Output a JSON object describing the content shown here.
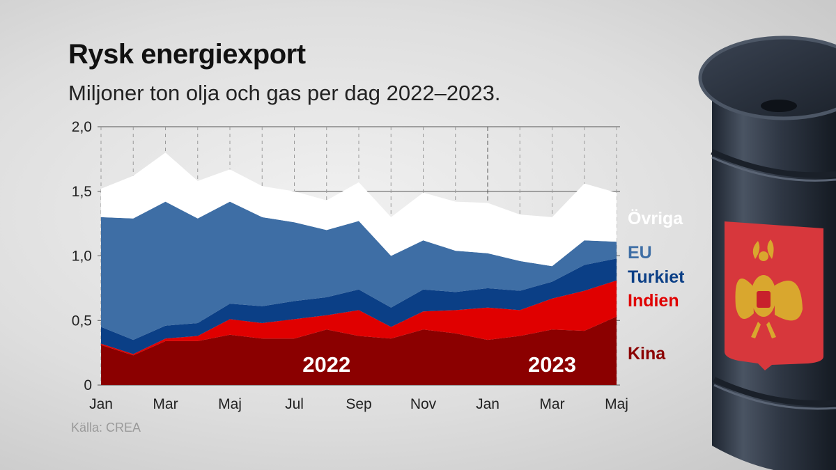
{
  "title": "Rysk energiexport",
  "subtitle": "Miljoner ton olja och gas per dag 2022–2023.",
  "source": "Källa: CREA",
  "chart_data": {
    "type": "area",
    "stacked": true,
    "title": "Rysk energiexport",
    "subtitle": "Miljoner ton olja och gas per dag 2022–2023.",
    "xlabel": "",
    "ylabel": "",
    "ylim": [
      0,
      2.0
    ],
    "yticks": [
      0,
      0.5,
      1.0,
      1.5,
      2.0
    ],
    "ytick_labels": [
      "0",
      "0,5",
      "1,0",
      "1,5",
      "2,0"
    ],
    "x": [
      "2022-01",
      "2022-02",
      "2022-03",
      "2022-04",
      "2022-05",
      "2022-06",
      "2022-07",
      "2022-08",
      "2022-09",
      "2022-10",
      "2022-11",
      "2022-12",
      "2023-01",
      "2023-02",
      "2023-03",
      "2023-04",
      "2023-05"
    ],
    "xtick_labels": [
      "Jan",
      "",
      "Mar",
      "",
      "Maj",
      "",
      "Jul",
      "",
      "Sep",
      "",
      "Nov",
      "",
      "Jan",
      "",
      "Mar",
      "",
      "Maj"
    ],
    "year_labels": [
      {
        "text": "2022",
        "x": "2022-08"
      },
      {
        "text": "2023",
        "x": "2023-03"
      }
    ],
    "year_divider": "2023-01",
    "grid": true,
    "series": [
      {
        "name": "Kina",
        "color": "#8b0000",
        "values": [
          0.31,
          0.23,
          0.34,
          0.34,
          0.39,
          0.36,
          0.36,
          0.43,
          0.38,
          0.36,
          0.43,
          0.4,
          0.35,
          0.38,
          0.43,
          0.42,
          0.53
        ]
      },
      {
        "name": "Indien",
        "color": "#e00000",
        "values": [
          0.01,
          0.01,
          0.02,
          0.04,
          0.12,
          0.12,
          0.15,
          0.11,
          0.2,
          0.09,
          0.14,
          0.18,
          0.25,
          0.2,
          0.24,
          0.31,
          0.28
        ]
      },
      {
        "name": "Turkiet",
        "color": "#0b3f86",
        "values": [
          0.13,
          0.11,
          0.1,
          0.1,
          0.12,
          0.13,
          0.14,
          0.14,
          0.16,
          0.15,
          0.17,
          0.14,
          0.15,
          0.15,
          0.13,
          0.2,
          0.17
        ]
      },
      {
        "name": "EU",
        "color": "#3e6ea5",
        "values": [
          0.85,
          0.94,
          0.96,
          0.81,
          0.79,
          0.69,
          0.61,
          0.52,
          0.53,
          0.4,
          0.38,
          0.32,
          0.27,
          0.23,
          0.12,
          0.19,
          0.13
        ]
      },
      {
        "name": "Övriga",
        "color": "#ffffff",
        "values": [
          0.22,
          0.33,
          0.38,
          0.29,
          0.25,
          0.24,
          0.24,
          0.23,
          0.3,
          0.3,
          0.37,
          0.38,
          0.39,
          0.36,
          0.38,
          0.44,
          0.38
        ]
      }
    ],
    "legend": "right",
    "legend_colors": {
      "Övriga": "#ffffff",
      "EU": "#3e6ea5",
      "Turkiet": "#0b3f86",
      "Indien": "#e00000",
      "Kina": "#8b0000"
    }
  },
  "icons": {
    "barrel": "oil-barrel-icon",
    "emblem": "russian-coat-of-arms-icon"
  }
}
